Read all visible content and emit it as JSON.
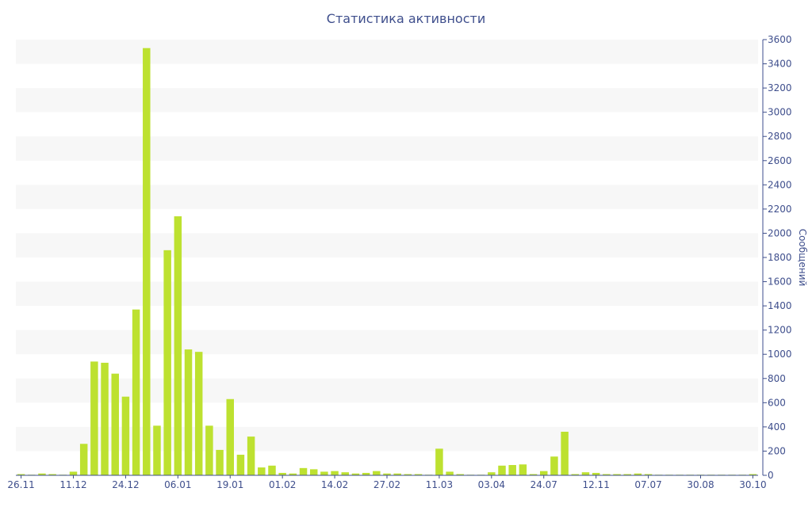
{
  "chart_data": {
    "type": "bar",
    "title": "Статистика активности",
    "ylabel": "Сообщений",
    "xlabel": "",
    "ylim": [
      0,
      3600
    ],
    "y_ticks": [
      0,
      200,
      400,
      600,
      800,
      1000,
      1200,
      1400,
      1600,
      1800,
      2000,
      2200,
      2400,
      2600,
      2800,
      3000,
      3200,
      3400,
      3600
    ],
    "y_axis_side": "right",
    "grid": "alternating horizontal bands",
    "x_tick_labels": [
      "26.11",
      "11.12",
      "24.12",
      "06.01",
      "19.01",
      "01.02",
      "14.02",
      "27.02",
      "11.03",
      "03.04",
      "24.07",
      "12.11",
      "07.07",
      "30.08",
      "30.10"
    ],
    "x_tick_bar_index": [
      0,
      5,
      10,
      15,
      20,
      25,
      30,
      35,
      40,
      45,
      50,
      55,
      60,
      65,
      70
    ],
    "bar_color": "#bde130",
    "band_color": "#f7f7f7",
    "text_color": "#3e4e8c",
    "values": [
      10,
      5,
      15,
      10,
      5,
      30,
      260,
      940,
      930,
      840,
      650,
      1370,
      3530,
      410,
      1860,
      2140,
      1040,
      1020,
      410,
      210,
      630,
      170,
      320,
      65,
      80,
      20,
      15,
      60,
      50,
      30,
      35,
      25,
      15,
      20,
      35,
      15,
      15,
      10,
      10,
      5,
      220,
      30,
      10,
      5,
      5,
      25,
      80,
      85,
      90,
      10,
      35,
      155,
      360,
      10,
      25,
      20,
      10,
      10,
      10,
      15,
      10,
      5,
      5,
      5,
      5,
      5,
      5,
      5,
      5,
      5,
      10
    ]
  }
}
